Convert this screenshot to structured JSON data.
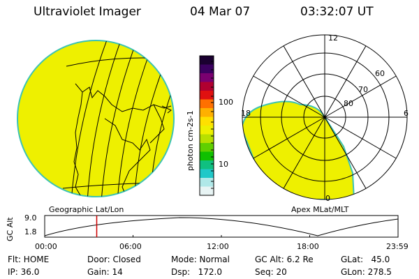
{
  "header": {
    "title": "Ultraviolet Imager",
    "date": "04 Mar 07",
    "time": "03:32:07 UT"
  },
  "colorbar": {
    "unit": "photon cm-2s-1",
    "tick_labels": [
      "100",
      "10"
    ],
    "colors": [
      "#1a0030",
      "#3b0060",
      "#7a0070",
      "#b00030",
      "#e01010",
      "#ff7000",
      "#ffb000",
      "#ffe000",
      "#eef000",
      "#b8e000",
      "#60d000",
      "#10c000",
      "#10c080",
      "#20c8c8",
      "#b0e8e8",
      "#e8f4f4"
    ]
  },
  "left_map": {
    "projection_label": "Geographic Lat/Lon",
    "fill_color": "#eef000",
    "edge_color": "#3cc3b4"
  },
  "right_polar": {
    "projection_label": "Apex MLat/MLT",
    "mlt_labels": [
      "12",
      "18",
      "6",
      "0"
    ],
    "lat_labels": [
      "60",
      "70",
      "80"
    ]
  },
  "timeline": {
    "y_label": "GC Alt",
    "y_ticks": [
      "9.0",
      "1.8"
    ],
    "x_ticks": [
      "00:00",
      "06:00",
      "12:00",
      "18:00",
      "23:59"
    ],
    "marker_time": "03:32",
    "marker_color": "#cc0000"
  },
  "info": {
    "flt": "Flt: HOME",
    "door": "Door: Closed",
    "mode": "Mode: Normal",
    "gcalt": "GC Alt: 6.2 Re",
    "glat": "GLat:   45.0",
    "ip": "IP: 36.0",
    "gain": "Gain: 14",
    "dsp": "Dsp:   172.0",
    "seq": "Seq: 20",
    "glon": "GLon: 278.5"
  }
}
